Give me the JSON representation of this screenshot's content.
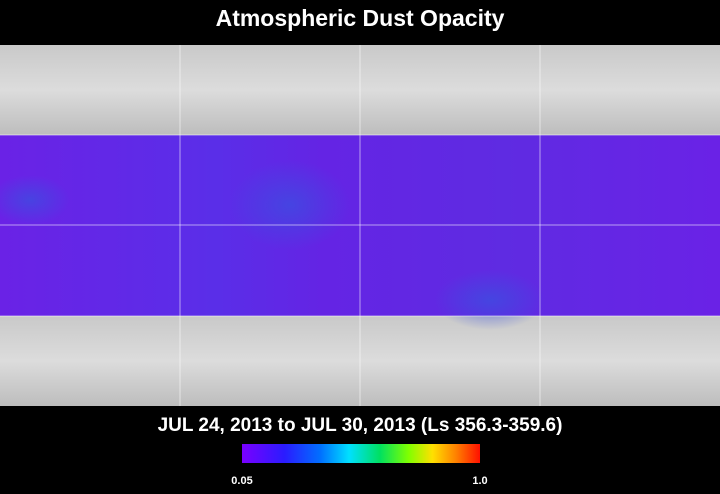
{
  "header": {
    "title": "Atmospheric Dust Opacity"
  },
  "map": {
    "date_range": "JUL 24, 2013 to JUL 30, 2013 (Ls 356.3-359.6)"
  },
  "colorbar": {
    "min_label": "0.05",
    "max_label": "1.0"
  }
}
